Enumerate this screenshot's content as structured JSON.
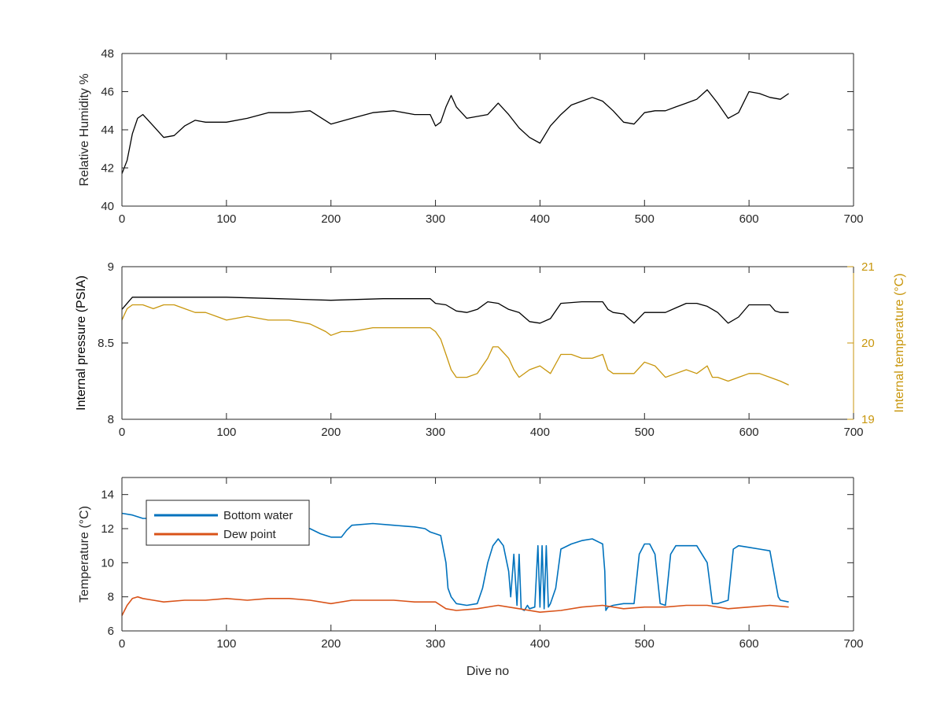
{
  "chart_data": [
    {
      "type": "line",
      "xlabel": "",
      "ylabel": "Relative Humidity %",
      "xlim": [
        0,
        700
      ],
      "ylim": [
        40,
        48
      ],
      "xticks": [
        "0",
        "100",
        "200",
        "300",
        "400",
        "500",
        "600",
        "700"
      ],
      "yticks": [
        "40",
        "42",
        "44",
        "46",
        "48"
      ],
      "grid": false,
      "series": [
        {
          "color": "#000000",
          "x": [
            0,
            5,
            10,
            15,
            20,
            30,
            40,
            50,
            60,
            70,
            80,
            100,
            120,
            140,
            160,
            180,
            200,
            220,
            240,
            260,
            280,
            295,
            300,
            305,
            310,
            315,
            320,
            330,
            340,
            350,
            360,
            370,
            380,
            390,
            400,
            410,
            420,
            430,
            440,
            450,
            460,
            470,
            480,
            490,
            500,
            510,
            520,
            530,
            540,
            550,
            560,
            570,
            580,
            590,
            600,
            610,
            620,
            630,
            638
          ],
          "values": [
            41.7,
            42.4,
            43.8,
            44.6,
            44.8,
            44.2,
            43.6,
            43.7,
            44.2,
            44.5,
            44.4,
            44.4,
            44.6,
            44.9,
            44.9,
            45.0,
            44.3,
            44.6,
            44.9,
            45.0,
            44.8,
            44.8,
            44.2,
            44.4,
            45.2,
            45.8,
            45.2,
            44.6,
            44.7,
            44.8,
            45.4,
            44.8,
            44.1,
            43.6,
            43.3,
            44.2,
            44.8,
            45.3,
            45.5,
            45.7,
            45.5,
            45.0,
            44.4,
            44.3,
            44.9,
            45.0,
            45.0,
            45.2,
            45.4,
            45.6,
            46.1,
            45.4,
            44.6,
            44.9,
            46.0,
            45.9,
            45.7,
            45.6,
            45.9
          ]
        }
      ]
    },
    {
      "type": "line",
      "xlabel": "",
      "ylabel": "Internal pressure (PSIA)",
      "y2label": "Internal temperature (°C)",
      "xlim": [
        0,
        700
      ],
      "ylim": [
        8,
        9
      ],
      "y2lim": [
        19,
        21
      ],
      "xticks": [
        "0",
        "100",
        "200",
        "300",
        "400",
        "500",
        "600",
        "700"
      ],
      "yticks": [
        "8",
        "8.5",
        "9"
      ],
      "y2ticks": [
        "19",
        "20",
        "21"
      ],
      "grid": false,
      "series": [
        {
          "color": "#000000",
          "axis": "left",
          "x": [
            0,
            5,
            10,
            20,
            40,
            60,
            80,
            100,
            150,
            200,
            250,
            295,
            300,
            310,
            320,
            330,
            340,
            350,
            360,
            370,
            380,
            390,
            400,
            410,
            420,
            440,
            460,
            465,
            470,
            480,
            490,
            500,
            510,
            520,
            530,
            540,
            550,
            560,
            570,
            580,
            590,
            600,
            610,
            620,
            625,
            630,
            638
          ],
          "values": [
            8.72,
            8.76,
            8.8,
            8.8,
            8.8,
            8.8,
            8.8,
            8.8,
            8.79,
            8.78,
            8.79,
            8.79,
            8.76,
            8.75,
            8.71,
            8.7,
            8.72,
            8.77,
            8.76,
            8.72,
            8.7,
            8.64,
            8.63,
            8.66,
            8.76,
            8.77,
            8.77,
            8.72,
            8.7,
            8.69,
            8.63,
            8.7,
            8.7,
            8.7,
            8.73,
            8.76,
            8.76,
            8.74,
            8.7,
            8.63,
            8.67,
            8.75,
            8.75,
            8.75,
            8.71,
            8.7,
            8.7
          ]
        },
        {
          "color": "#C8960C",
          "axis": "right",
          "x": [
            0,
            5,
            10,
            20,
            30,
            40,
            50,
            60,
            70,
            80,
            90,
            100,
            120,
            140,
            160,
            180,
            195,
            200,
            210,
            220,
            240,
            260,
            280,
            295,
            300,
            305,
            310,
            315,
            320,
            330,
            340,
            350,
            355,
            360,
            370,
            375,
            380,
            390,
            400,
            410,
            420,
            430,
            440,
            450,
            460,
            465,
            470,
            480,
            490,
            500,
            510,
            520,
            530,
            540,
            550,
            560,
            565,
            570,
            580,
            590,
            600,
            610,
            620,
            630,
            638
          ],
          "values": [
            20.3,
            20.45,
            20.5,
            20.5,
            20.45,
            20.5,
            20.5,
            20.45,
            20.4,
            20.4,
            20.35,
            20.3,
            20.35,
            20.3,
            20.3,
            20.25,
            20.15,
            20.1,
            20.15,
            20.15,
            20.2,
            20.2,
            20.2,
            20.2,
            20.15,
            20.05,
            19.85,
            19.65,
            19.55,
            19.55,
            19.6,
            19.8,
            19.95,
            19.95,
            19.8,
            19.65,
            19.55,
            19.65,
            19.7,
            19.6,
            19.85,
            19.85,
            19.8,
            19.8,
            19.85,
            19.65,
            19.6,
            19.6,
            19.6,
            19.75,
            19.7,
            19.55,
            19.6,
            19.65,
            19.6,
            19.7,
            19.55,
            19.55,
            19.5,
            19.55,
            19.6,
            19.6,
            19.55,
            19.5,
            19.45
          ]
        }
      ]
    },
    {
      "type": "line",
      "xlabel": "Dive no",
      "ylabel": "Temperature (°C)",
      "xlim": [
        0,
        700
      ],
      "ylim": [
        6,
        15
      ],
      "xticks": [
        "0",
        "100",
        "200",
        "300",
        "400",
        "500",
        "600",
        "700"
      ],
      "yticks": [
        "6",
        "8",
        "10",
        "12",
        "14"
      ],
      "grid": false,
      "legend": "top-left",
      "series": [
        {
          "name": "Bottom water",
          "color": "#0072BD",
          "x": [
            0,
            10,
            20,
            30,
            40,
            60,
            80,
            100,
            120,
            140,
            160,
            180,
            190,
            200,
            205,
            210,
            215,
            220,
            240,
            260,
            280,
            290,
            295,
            300,
            305,
            310,
            312,
            315,
            320,
            330,
            340,
            345,
            350,
            355,
            360,
            365,
            370,
            372,
            375,
            378,
            380,
            382,
            385,
            388,
            390,
            395,
            398,
            400,
            402,
            404,
            406,
            408,
            410,
            415,
            420,
            430,
            440,
            450,
            460,
            462,
            463,
            465,
            470,
            480,
            490,
            495,
            500,
            505,
            510,
            515,
            520,
            525,
            530,
            540,
            550,
            560,
            565,
            570,
            580,
            585,
            590,
            600,
            610,
            620,
            628,
            630,
            638
          ],
          "values": [
            12.9,
            12.8,
            12.6,
            12.6,
            12.5,
            12.5,
            12.4,
            12.4,
            12.4,
            12.3,
            12.2,
            12.0,
            11.7,
            11.5,
            11.5,
            11.5,
            11.9,
            12.2,
            12.3,
            12.2,
            12.1,
            12.0,
            11.8,
            11.7,
            11.6,
            10.0,
            8.5,
            8.0,
            7.6,
            7.5,
            7.6,
            8.5,
            10.0,
            11.0,
            11.4,
            11.0,
            9.5,
            8.0,
            10.5,
            7.5,
            10.5,
            7.3,
            7.2,
            7.5,
            7.3,
            7.4,
            11.0,
            7.4,
            11.0,
            7.3,
            11.0,
            7.4,
            7.6,
            8.5,
            10.8,
            11.1,
            11.3,
            11.4,
            11.1,
            9.5,
            7.2,
            7.4,
            7.5,
            7.6,
            7.6,
            10.5,
            11.1,
            11.1,
            10.5,
            7.6,
            7.5,
            10.5,
            11.0,
            11.0,
            11.0,
            10.0,
            7.6,
            7.6,
            7.8,
            10.8,
            11.0,
            10.9,
            10.8,
            10.7,
            8.0,
            7.8,
            7.7
          ]
        },
        {
          "name": "Dew point",
          "color": "#D95319",
          "x": [
            0,
            5,
            10,
            15,
            20,
            30,
            40,
            60,
            80,
            100,
            120,
            140,
            160,
            180,
            200,
            220,
            240,
            260,
            280,
            300,
            310,
            320,
            340,
            360,
            380,
            400,
            420,
            440,
            460,
            480,
            500,
            520,
            540,
            560,
            580,
            600,
            620,
            638
          ],
          "values": [
            6.9,
            7.5,
            7.9,
            8.0,
            7.9,
            7.8,
            7.7,
            7.8,
            7.8,
            7.9,
            7.8,
            7.9,
            7.9,
            7.8,
            7.6,
            7.8,
            7.8,
            7.8,
            7.7,
            7.7,
            7.3,
            7.2,
            7.3,
            7.5,
            7.3,
            7.1,
            7.2,
            7.4,
            7.5,
            7.3,
            7.4,
            7.4,
            7.5,
            7.5,
            7.3,
            7.4,
            7.5,
            7.4
          ]
        }
      ]
    }
  ]
}
